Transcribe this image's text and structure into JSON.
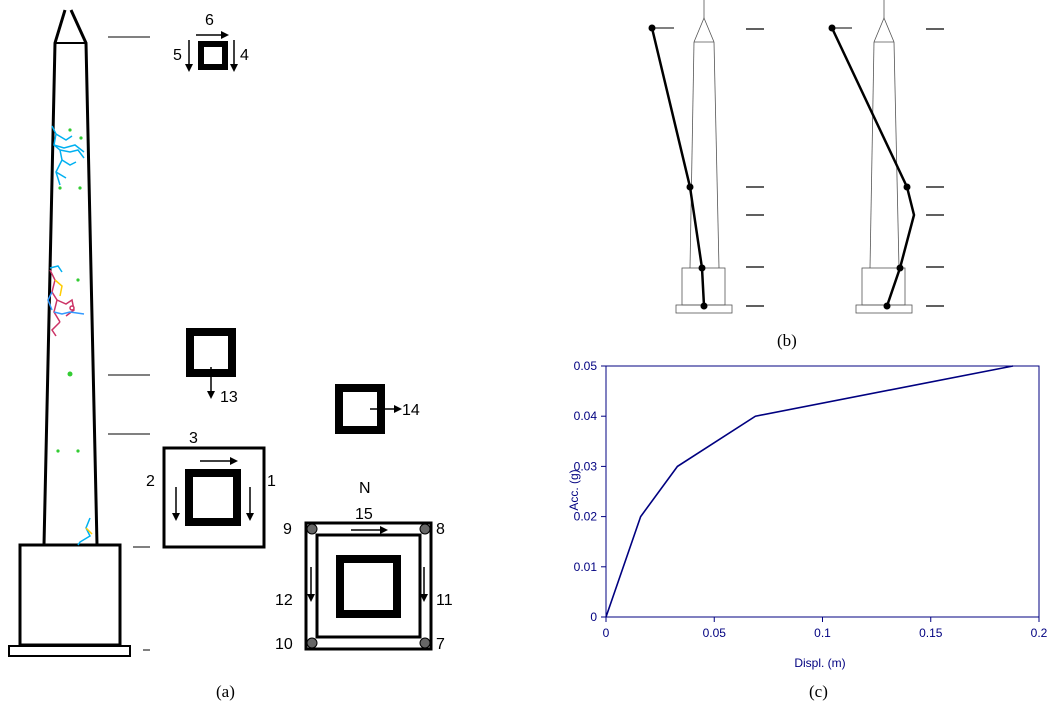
{
  "panel_a": {
    "caption": "(a)",
    "top_section": {
      "labels": [
        "6",
        "5",
        "4"
      ]
    },
    "mid_section": {
      "labels": [
        "13"
      ]
    },
    "mid_section_2": {
      "labels": [
        "14"
      ]
    },
    "shaft_base_section": {
      "labels": [
        "3",
        "2",
        "1"
      ]
    },
    "plinth_section": {
      "labels": [
        "N",
        "15",
        "9",
        "8",
        "12",
        "11",
        "10",
        "7"
      ]
    }
  },
  "panel_b": {
    "caption": "(b)",
    "deformed_shapes": 2
  },
  "panel_c": {
    "caption": "(c)",
    "colors": {
      "axis": "#000080",
      "curve": "#000080"
    }
  },
  "chart_data": {
    "type": "line",
    "title": "",
    "xlabel": "Displ. (m)",
    "ylabel": "Acc. (g)",
    "xlim": [
      0,
      0.2
    ],
    "ylim": [
      0,
      0.05
    ],
    "xticks": [
      "0",
      "0.05",
      "0.1",
      "0.15",
      "0.2"
    ],
    "yticks": [
      "0",
      "0.01",
      "0.02",
      "0.03",
      "0.04",
      "0.05"
    ],
    "grid": false,
    "series": [
      {
        "x": [
          0,
          0.016,
          0.033,
          0.069,
          0.188
        ],
        "y": [
          0,
          0.02,
          0.03,
          0.04,
          0.05
        ]
      }
    ]
  }
}
